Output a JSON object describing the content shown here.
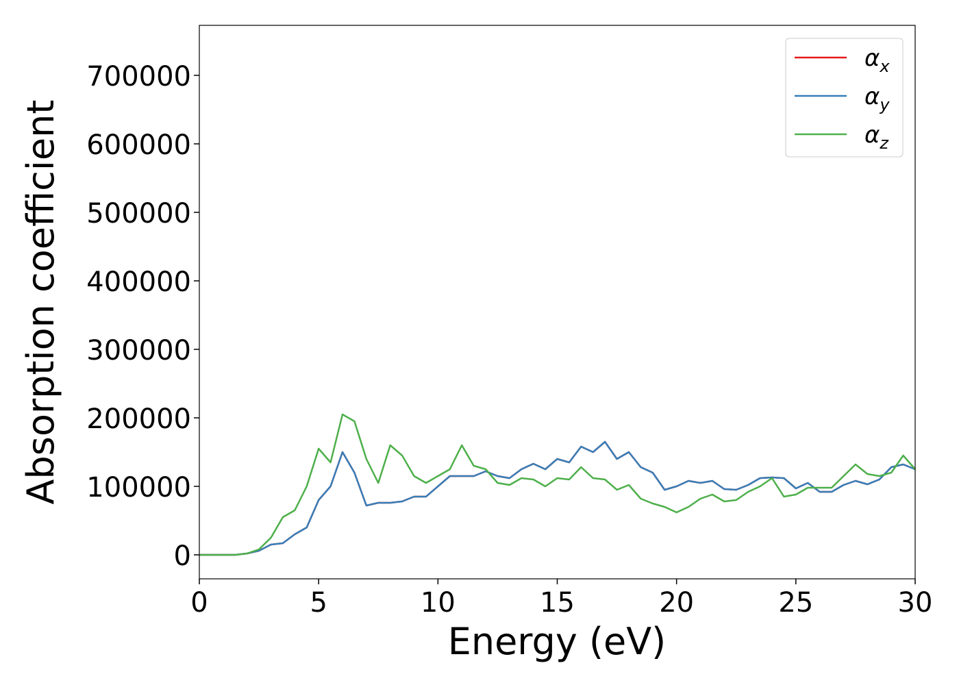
{
  "chart_data": {
    "type": "line",
    "x_label": "Energy (eV)",
    "y_label": "Absorption coefficient",
    "x": [
      0,
      0.5,
      1,
      1.5,
      2,
      2.5,
      3,
      3.5,
      4,
      4.5,
      5,
      5.5,
      6,
      6.5,
      7,
      7.5,
      8,
      8.5,
      9,
      9.5,
      10,
      10.5,
      11,
      11.5,
      12,
      12.5,
      13,
      13.5,
      14,
      14.5,
      15,
      15.5,
      16,
      16.5,
      17,
      17.5,
      18,
      18.5,
      19,
      19.5,
      20,
      20.5,
      21,
      21.5,
      22,
      22.5,
      23,
      23.5,
      24,
      24.5,
      25,
      25.5,
      26,
      26.5,
      27,
      27.5,
      28,
      28.5,
      29,
      29.5,
      30
    ],
    "series": [
      {
        "name": "α_x",
        "color": "#e41a1c",
        "values": [
          0,
          0,
          0,
          0,
          2000,
          6000,
          15000,
          17000,
          30000,
          40000,
          80000,
          100000,
          150000,
          120000,
          72000,
          76000,
          76000,
          78000,
          85000,
          85000,
          100000,
          115000,
          115000,
          115000,
          122000,
          115000,
          112000,
          125000,
          133000,
          125000,
          140000,
          135000,
          158000,
          150000,
          165000,
          140000,
          150000,
          128000,
          120000,
          95000,
          100000,
          108000,
          105000,
          108000,
          96000,
          95000,
          102000,
          112000,
          113000,
          112000,
          97000,
          105000,
          92000,
          92000,
          102000,
          108000,
          103000,
          110000,
          128000,
          132000,
          125000
        ]
      },
      {
        "name": "α_y",
        "color": "#377eb8",
        "values": [
          0,
          0,
          0,
          0,
          2000,
          6000,
          15000,
          17000,
          30000,
          40000,
          80000,
          100000,
          150000,
          120000,
          72000,
          76000,
          76000,
          78000,
          85000,
          85000,
          100000,
          115000,
          115000,
          115000,
          122000,
          115000,
          112000,
          125000,
          133000,
          125000,
          140000,
          135000,
          158000,
          150000,
          165000,
          140000,
          150000,
          128000,
          120000,
          95000,
          100000,
          108000,
          105000,
          108000,
          96000,
          95000,
          102000,
          112000,
          113000,
          112000,
          97000,
          105000,
          92000,
          92000,
          102000,
          108000,
          103000,
          110000,
          128000,
          132000,
          125000
        ]
      },
      {
        "name": "α_z",
        "color": "#4daf4a",
        "values": [
          0,
          0,
          0,
          0,
          2000,
          8000,
          25000,
          55000,
          65000,
          100000,
          155000,
          135000,
          205000,
          195000,
          140000,
          105000,
          160000,
          145000,
          115000,
          105000,
          115000,
          125000,
          160000,
          130000,
          125000,
          105000,
          102000,
          112000,
          110000,
          100000,
          112000,
          110000,
          128000,
          112000,
          110000,
          95000,
          102000,
          82000,
          75000,
          70000,
          62000,
          70000,
          82000,
          88000,
          78000,
          80000,
          92000,
          100000,
          112000,
          85000,
          88000,
          98000,
          98000,
          98000,
          115000,
          132000,
          118000,
          115000,
          120000,
          145000,
          125000
        ]
      }
    ],
    "xlim": [
      0,
      30
    ],
    "xticks": [
      0,
      5,
      10,
      15,
      20,
      25,
      30
    ],
    "ylim": [
      -35000,
      773000
    ],
    "yticks": [
      0,
      100000,
      200000,
      300000,
      400000,
      500000,
      600000,
      700000
    ],
    "legend": "upper right",
    "grid": false
  }
}
